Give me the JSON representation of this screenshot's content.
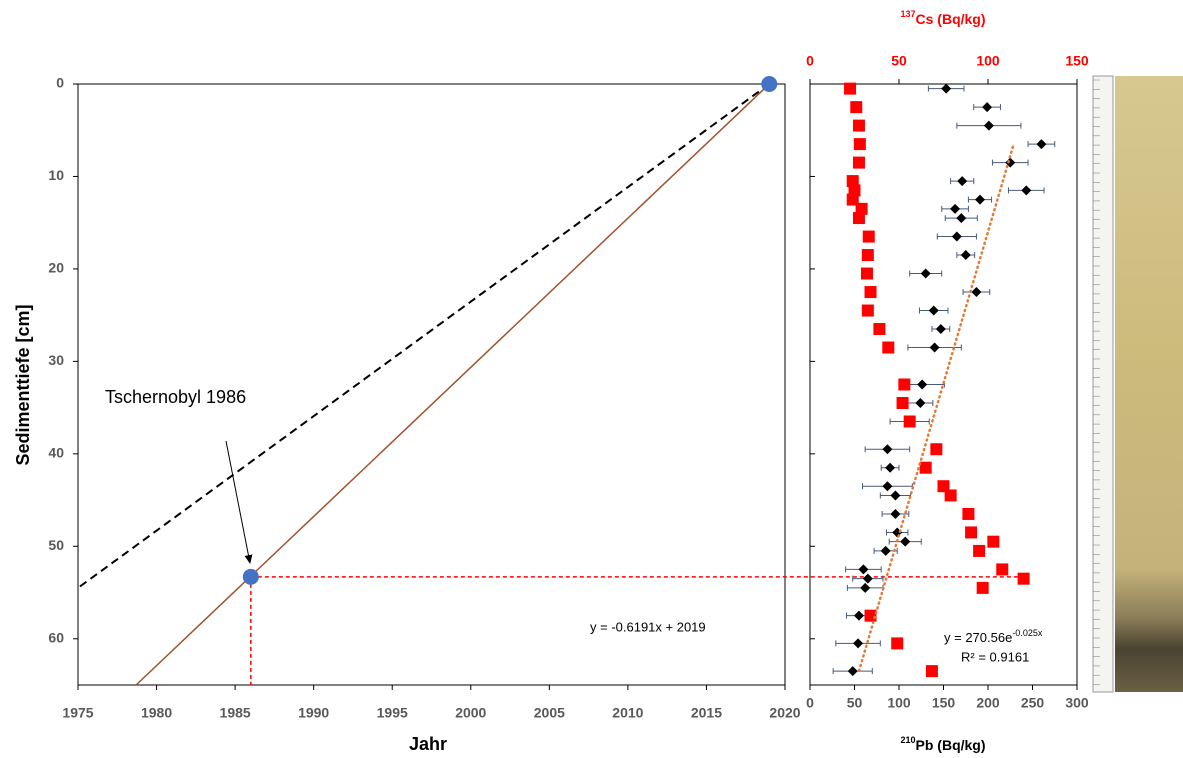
{
  "chart_data": [
    {
      "type": "line",
      "x_label": "Jahr",
      "y_label": "Sedimenttiefe [cm]",
      "xlim": [
        1975,
        2020
      ],
      "xticks": [
        1975,
        1980,
        1985,
        1990,
        1995,
        2000,
        2005,
        2010,
        2015,
        2020
      ],
      "ylim": [
        0,
        65
      ],
      "yticks": [
        0,
        10,
        20,
        30,
        40,
        50,
        60
      ],
      "y_inverted": true,
      "series": [
        {
          "color": "#a0522d",
          "style": "solid",
          "x": [
            2019,
            1978.7
          ],
          "values": [
            0,
            65
          ]
        },
        {
          "color": "#000000",
          "style": "dashed",
          "x": [
            2019,
            1975
          ],
          "values": [
            0,
            54.5
          ]
        },
        {
          "color": "#4472c4",
          "style": "markers",
          "x": [
            2019,
            1986
          ],
          "values": [
            0,
            53.3
          ]
        }
      ],
      "annotations": [
        {
          "text": "Tschernobyl 1986"
        },
        {
          "text": "y = -0.6191x + 2019"
        }
      ]
    },
    {
      "type": "scatter",
      "x_label": {
        "sup": "210",
        "text": "Pb (Bq/kg)"
      },
      "x2_label": {
        "sup": "137",
        "text": "Cs (Bq/kg)"
      },
      "xlim": [
        0,
        300
      ],
      "xticks": [
        0,
        50,
        100,
        150,
        200,
        250,
        300
      ],
      "x2lim": [
        0,
        150
      ],
      "x2ticks": [
        0,
        50,
        100,
        150
      ],
      "ylim": [
        0,
        65
      ],
      "yticks": [
        0,
        10,
        20,
        30,
        40,
        50,
        60
      ],
      "y_inverted": true,
      "y": [
        0.5,
        2.5,
        4.5,
        6.5,
        8.5,
        10.5,
        11.5,
        12.5,
        13.5,
        14.5,
        16.5,
        18.5,
        20.5,
        22.5,
        24.5,
        26.5,
        28.5,
        32.5,
        34.5,
        36.5,
        39.5,
        41.5,
        43.5,
        44.5,
        46.5,
        48.5,
        49.5,
        50.5,
        52.5,
        53.5,
        54.5,
        57.5,
        60.5,
        63.5
      ],
      "series": [
        {
          "color": "#000000",
          "marker": "diamond",
          "x": [
            153,
            199,
            201,
            260,
            225,
            171,
            243,
            191,
            163,
            170,
            165,
            175,
            130,
            187,
            139,
            147,
            140,
            126,
            124,
            112,
            87,
            90,
            87,
            96,
            96,
            98,
            107,
            85,
            60,
            65,
            62,
            55,
            54,
            48
          ],
          "errors": [
            20,
            15,
            36,
            15,
            20,
            13,
            20,
            13,
            15,
            18,
            22,
            10,
            18,
            15,
            16,
            10,
            30,
            25,
            14,
            22,
            25,
            10,
            28,
            17,
            15,
            12,
            18,
            13,
            20,
            17,
            20,
            14,
            25,
            22
          ]
        },
        {
          "color": "#ff0000",
          "marker": "square",
          "axis": "x2",
          "x": [
            22.5,
            26,
            27.5,
            28,
            27.5,
            24,
            25,
            24,
            29,
            27.5,
            33,
            32.5,
            32,
            34,
            32.5,
            39,
            44,
            53,
            52,
            56,
            71,
            65,
            75,
            79,
            89,
            90.5,
            103,
            95,
            108,
            120,
            97,
            34,
            49,
            68.5
          ]
        },
        {
          "color": "#e07b39",
          "marker": "dotted-line",
          "trend": true,
          "x": [
            228,
            55
          ],
          "y": [
            6.8,
            63.5
          ]
        }
      ],
      "annotations": [
        {
          "text": "y = 270.56e",
          "sup": "-0.025x"
        },
        {
          "text": "R² = 0.9161"
        }
      ]
    }
  ]
}
